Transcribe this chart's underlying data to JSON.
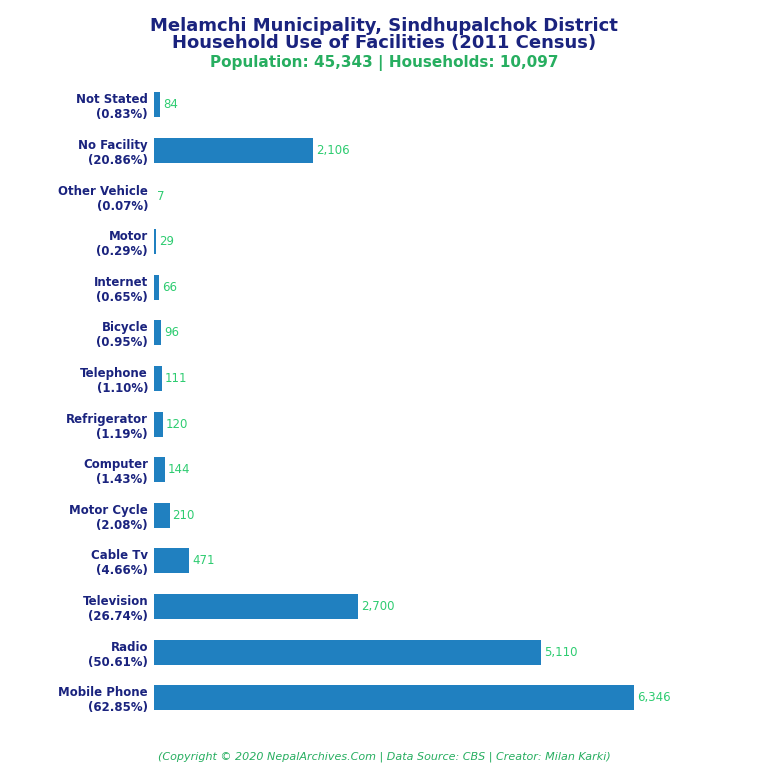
{
  "title_line1": "Melamchi Municipality, Sindhupalchok District",
  "title_line2": "Household Use of Facilities (2011 Census)",
  "subtitle": "Population: 45,343 | Households: 10,097",
  "footer": "(Copyright © 2020 NepalArchives.Com | Data Source: CBS | Creator: Milan Karki)",
  "categories": [
    "Mobile Phone\n(62.85%)",
    "Radio\n(50.61%)",
    "Television\n(26.74%)",
    "Cable Tv\n(4.66%)",
    "Motor Cycle\n(2.08%)",
    "Computer\n(1.43%)",
    "Refrigerator\n(1.19%)",
    "Telephone\n(1.10%)",
    "Bicycle\n(0.95%)",
    "Internet\n(0.65%)",
    "Motor\n(0.29%)",
    "Other Vehicle\n(0.07%)",
    "No Facility\n(20.86%)",
    "Not Stated\n(0.83%)"
  ],
  "values": [
    6346,
    5110,
    2700,
    471,
    210,
    144,
    120,
    111,
    96,
    66,
    29,
    7,
    2106,
    84
  ],
  "bar_color": "#2080c0",
  "label_color": "#2ecc71",
  "title_color": "#1a237e",
  "subtitle_color": "#27ae60",
  "footer_color": "#27ae60",
  "background_color": "#ffffff",
  "xlim": [
    0,
    7200
  ],
  "label_fontsize": 8.5,
  "value_fontsize": 8.5,
  "title_fontsize": 13,
  "subtitle_fontsize": 11,
  "footer_fontsize": 8
}
